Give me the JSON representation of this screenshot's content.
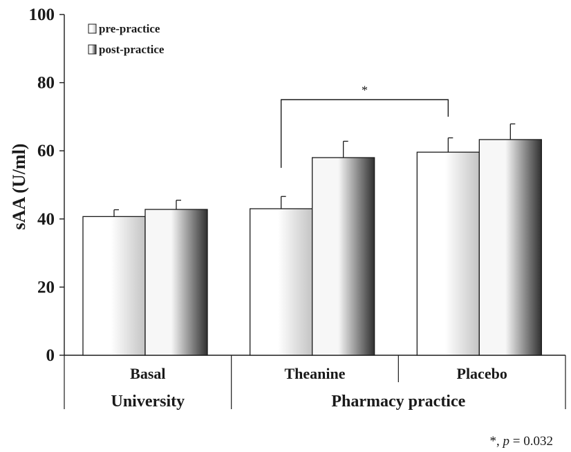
{
  "chart_data": {
    "type": "bar",
    "ylabel": "sAA (U/ml)",
    "ylim": [
      0,
      100
    ],
    "yticks": [
      0,
      20,
      40,
      60,
      80,
      100
    ],
    "categories": [
      "Basal",
      "Theanine",
      "Placebo"
    ],
    "groups": [
      {
        "label": "University",
        "categories": [
          "Basal"
        ]
      },
      {
        "label": "Pharmacy practice",
        "categories": [
          "Theanine",
          "Placebo"
        ]
      }
    ],
    "series": [
      {
        "name": "pre-practice",
        "values": [
          40.7,
          43.0,
          59.6
        ],
        "errors": [
          2.0,
          3.6,
          4.2
        ]
      },
      {
        "name": "post-practice",
        "values": [
          42.8,
          58.0,
          63.3
        ],
        "errors": [
          2.7,
          4.8,
          4.6
        ]
      }
    ],
    "legend_position": "top-left",
    "significance": {
      "from_category": "Theanine",
      "to_category": "Placebo",
      "series": "pre-practice",
      "label": "*"
    },
    "footnote": {
      "prefix": "*, ",
      "symbol": "p",
      "suffix": " = 0.032"
    },
    "grid": false
  },
  "colors": {
    "pre_light": "#ffffff",
    "pre_dark": "#c4c4c4",
    "post_light": "#f7f7f7",
    "post_dark": "#303030",
    "line": "#1a1a1a"
  }
}
